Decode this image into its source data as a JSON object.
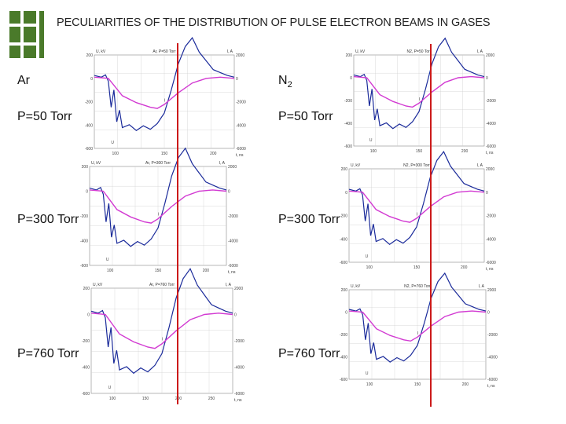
{
  "title": "PECULIARITIES OF THE DISTRIBUTION OF PULSE ELECTRON BEAMS IN GASES",
  "colors": {
    "logo": "#4a7a2a",
    "voltage": "#1a2a9a",
    "current": "#d23ad2",
    "marker": "#cc1a1a"
  },
  "labels": {
    "ar": "Ar",
    "n2_base": "N",
    "n2_sub": "2",
    "p50_left": "P=50 Torr",
    "p50_right": "P=50 Torr",
    "p300_left": "P=300 Torr",
    "p300_right": "P=300 Torr",
    "p760_left": "P=760 Torr",
    "p760_right": "P=760 Torr"
  },
  "panels": [
    {
      "id": "ar-50",
      "title": "Ar, P=50 Torr",
      "yleft": "U, kV",
      "yright": "I, A",
      "xlabel": "t, ns",
      "lticks": [
        "200",
        "0",
        "-200",
        "-400",
        "-600"
      ],
      "rticks": [
        "2000",
        "0",
        "-2000",
        "-4000",
        "-6000"
      ],
      "xticks": [
        "100",
        "150",
        "200"
      ],
      "curve_u": "U",
      "curve_i": "I"
    },
    {
      "id": "ar-300",
      "title": "Ar, P=300 Torr",
      "yleft": "U, kV",
      "yright": "I, A",
      "xlabel": "t, ns",
      "lticks": [
        "200",
        "0",
        "-200",
        "-400",
        "-600"
      ],
      "rticks": [
        "2000",
        "0",
        "-2000",
        "-4000",
        "-6000"
      ],
      "xticks": [
        "100",
        "150",
        "200"
      ],
      "curve_u": "U",
      "curve_i": "I"
    },
    {
      "id": "ar-760",
      "title": "Ar, P=760 Torr",
      "yleft": "U, kV",
      "yright": "I, A",
      "xlabel": "t, ns",
      "lticks": [
        "200",
        "0",
        "-200",
        "-400",
        "-600"
      ],
      "rticks": [
        "2000",
        "0",
        "-2000",
        "-4000",
        "-6000"
      ],
      "xticks": [
        "100",
        "150",
        "200",
        "250"
      ],
      "curve_u": "U",
      "curve_i": "I"
    },
    {
      "id": "n2-50",
      "title": "N2, P=50 Torr",
      "yleft": "U, kV",
      "yright": "I, A",
      "xlabel": "t, ns",
      "lticks": [
        "200",
        "0",
        "-200",
        "-400",
        "-600"
      ],
      "rticks": [
        "2000",
        "0",
        "-2000",
        "-4000",
        "-6000"
      ],
      "xticks": [
        "100",
        "150",
        "200"
      ],
      "curve_u": "U",
      "curve_i": "I"
    },
    {
      "id": "n2-300",
      "title": "N2, P=300 Torr",
      "yleft": "U, kV",
      "yright": "I, A",
      "xlabel": "t, ns",
      "lticks": [
        "200",
        "0",
        "-200",
        "-400",
        "-600"
      ],
      "rticks": [
        "2000",
        "0",
        "-2000",
        "-4000",
        "-6000"
      ],
      "xticks": [
        "100",
        "150",
        "200"
      ],
      "curve_u": "U",
      "curve_i": "I"
    },
    {
      "id": "n2-760",
      "title": "N2, P=760 Torr",
      "yleft": "U, kV",
      "yright": "I, A",
      "xlabel": "t, ns",
      "lticks": [
        "200",
        "0",
        "-200",
        "-400",
        "-600"
      ],
      "rticks": [
        "2000",
        "0",
        "-2000",
        "-4000",
        "-6000"
      ],
      "xticks": [
        "100",
        "150",
        "200"
      ],
      "curve_u": "U",
      "curve_i": "I"
    }
  ]
}
